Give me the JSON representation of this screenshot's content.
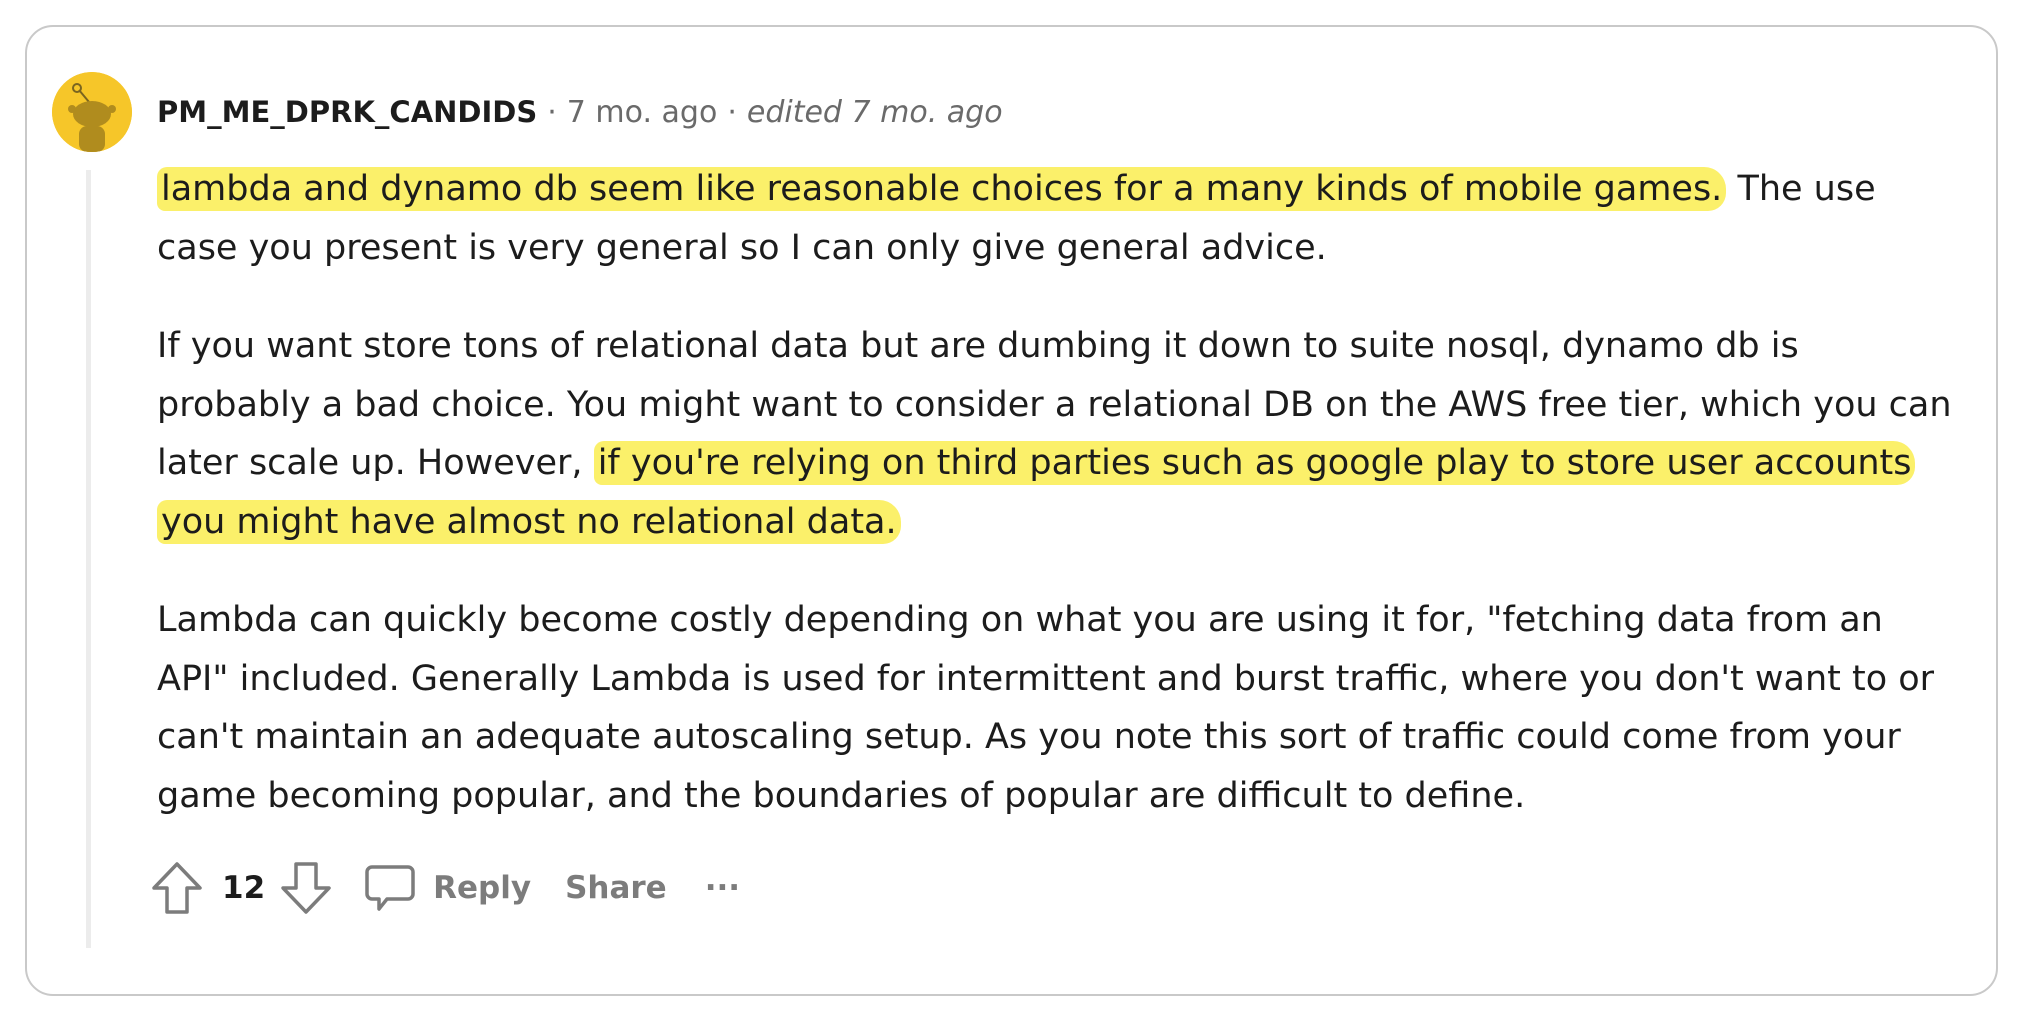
{
  "comment": {
    "author": "PM_ME_DPRK_CANDIDS",
    "separator": "·",
    "time": "7 mo. ago",
    "edited": "edited 7 mo. ago",
    "paragraphs": [
      {
        "segments": [
          {
            "text": "lambda and dynamo db seem like reasonable choices for a many kinds of mobile games.",
            "highlight": true
          },
          {
            "text": " The use case you present is very general so I can only give general advice.",
            "highlight": false
          }
        ]
      },
      {
        "segments": [
          {
            "text": "If you want store tons of relational data but are dumbing it down to suite nosql, dynamo db is probably a bad choice. You might want to consider a relational DB on the AWS free tier, which you can later scale up. However, ",
            "highlight": false
          },
          {
            "text": "if you're relying on third parties such as google play to store user accounts you might have almost no relational data.",
            "highlight": true
          }
        ]
      },
      {
        "segments": [
          {
            "text": "Lambda can quickly become costly depending on what you are using it for, \"fetching data from an API\" included. Generally Lambda is used for intermittent and burst traffic, where you don't want to or can't maintain an adequate autoscaling setup. As you note this sort of traffic could come from your game becoming popular, and the boundaries of popular are difficult to define.",
            "highlight": false
          }
        ]
      }
    ],
    "highlight_color": "#fbf06a",
    "actions": {
      "score": "12",
      "reply_label": "Reply",
      "share_label": "Share",
      "more_label": "···",
      "upvote_icon": "arrow-up-outline",
      "downvote_icon": "arrow-down-outline",
      "reply_icon": "speech-bubble"
    }
  }
}
